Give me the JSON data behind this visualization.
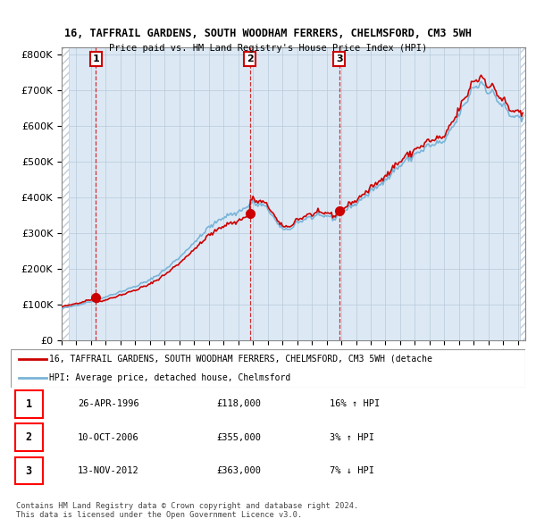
{
  "title_line1": "16, TAFFRAIL GARDENS, SOUTH WOODHAM FERRERS, CHELMSFORD, CM3 5WH",
  "title_line2": "Price paid vs. HM Land Registry's House Price Index (HPI)",
  "yticks": [
    0,
    100000,
    200000,
    300000,
    400000,
    500000,
    600000,
    700000,
    800000
  ],
  "xlim_start": 1994.0,
  "xlim_end": 2025.5,
  "sale_dates": [
    1996.32,
    2006.79,
    2012.87
  ],
  "sale_prices": [
    118000,
    355000,
    363000
  ],
  "sale_labels": [
    "1",
    "2",
    "3"
  ],
  "hpi_color": "#7ab4d8",
  "sale_color": "#cc0000",
  "bg_color": "#dce9f5",
  "hatch_color": "#c0cdd8",
  "grid_color": "#b8c8d8",
  "legend_text_red": "16, TAFFRAIL GARDENS, SOUTH WOODHAM FERRERS, CHELMSFORD, CM3 5WH (detache",
  "legend_text_blue": "HPI: Average price, detached house, Chelmsford",
  "table_rows": [
    {
      "num": "1",
      "date": "26-APR-1996",
      "price": "£118,000",
      "hpi": "16% ↑ HPI"
    },
    {
      "num": "2",
      "date": "10-OCT-2006",
      "price": "£355,000",
      "hpi": "3% ↑ HPI"
    },
    {
      "num": "3",
      "date": "13-NOV-2012",
      "price": "£363,000",
      "hpi": "7% ↓ HPI"
    }
  ],
  "footer_text": "Contains HM Land Registry data © Crown copyright and database right 2024.\nThis data is licensed under the Open Government Licence v3.0.",
  "hpi_base_years": [
    1994.0,
    1995.0,
    1996.0,
    1997.0,
    1998.0,
    1999.0,
    2000.0,
    2001.0,
    2002.0,
    2003.0,
    2004.0,
    2005.0,
    2006.0,
    2007.0,
    2008.0,
    2008.5,
    2009.0,
    2009.5,
    2010.0,
    2011.0,
    2012.0,
    2012.5,
    2013.0,
    2014.0,
    2015.0,
    2016.0,
    2017.0,
    2018.0,
    2019.0,
    2020.0,
    2021.0,
    2022.0,
    2022.5,
    2023.0,
    2023.5,
    2024.0,
    2024.5,
    2025.0
  ],
  "hpi_base_values": [
    88000,
    97000,
    108000,
    121000,
    135000,
    150000,
    168000,
    196000,
    232000,
    272000,
    315000,
    345000,
    358000,
    385000,
    370000,
    335000,
    310000,
    310000,
    330000,
    345000,
    348000,
    340000,
    358000,
    382000,
    415000,
    450000,
    490000,
    520000,
    545000,
    555000,
    630000,
    710000,
    720000,
    700000,
    680000,
    655000,
    630000,
    620000
  ],
  "noise_seed": 42,
  "noise_scale": 0.018
}
